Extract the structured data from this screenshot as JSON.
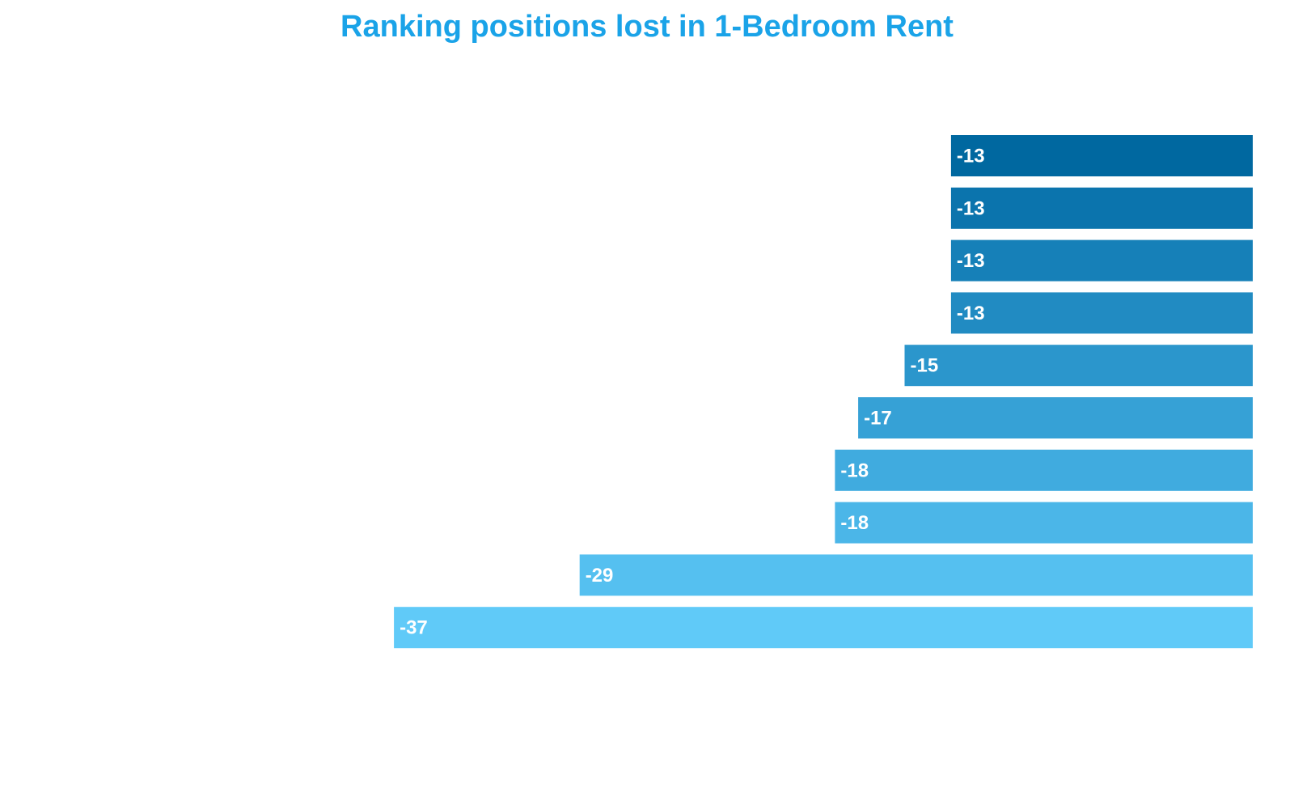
{
  "chart_data": {
    "type": "bar",
    "orientation": "horizontal",
    "title": "Ranking positions lost in 1-Bedroom Rent",
    "xlabel": "",
    "ylabel": "",
    "grid": false,
    "legend": "none",
    "values": [
      -13,
      -13,
      -13,
      -13,
      -15,
      -17,
      -18,
      -18,
      -29,
      -37
    ],
    "labels": [
      "-13",
      "-13",
      "-13",
      "-13",
      "-15",
      "-17",
      "-18",
      "-18",
      "-29",
      "-37"
    ],
    "colors": [
      "#0068a0",
      "#0b74ad",
      "#1680b8",
      "#218bc2",
      "#2b96cc",
      "#36a1d6",
      "#40abdf",
      "#4bb6e8",
      "#55c0f0",
      "#60caf8"
    ]
  }
}
